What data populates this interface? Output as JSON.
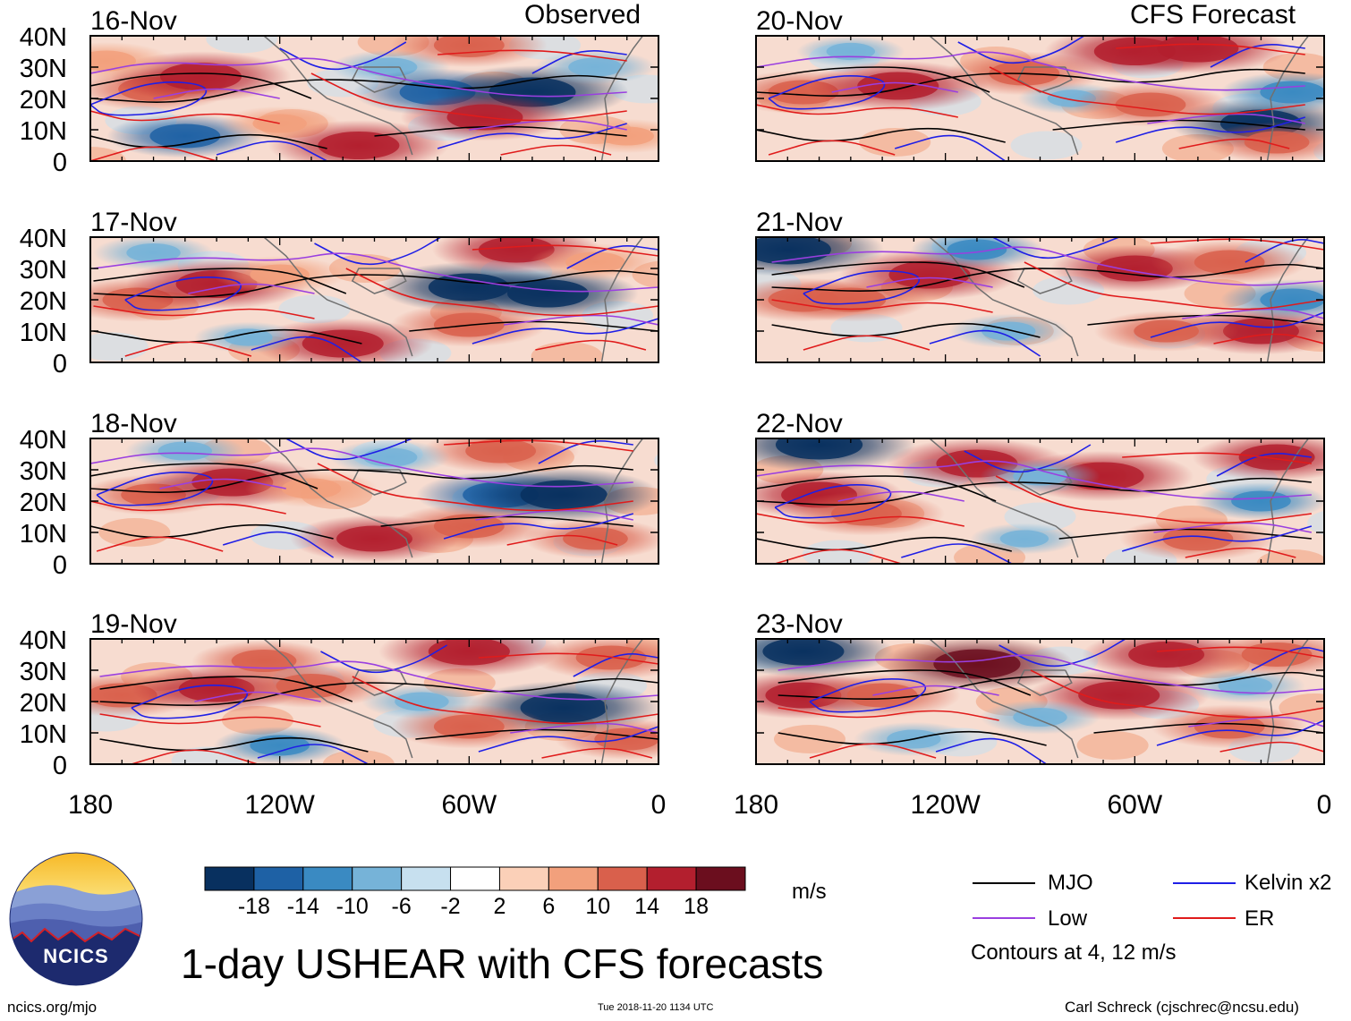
{
  "figure": {
    "title": "1-day USHEAR with CFS forecasts",
    "left_column_label": "Observed",
    "right_column_label": "CFS Forecast",
    "website": "ncics.org/mjo",
    "timestamp": "Tue 2018-11-20 1134 UTC",
    "author": "Carl Schreck (cjschrec@ncsu.edu)",
    "units": "m/s",
    "logo_text": "NCICS",
    "contour_note": "Contours at 4, 12 m/s"
  },
  "colors": {
    "neg_strong": "#0b3766",
    "pos_strong": "#6b0e1e",
    "mjo": "#000000",
    "kelvin": "#1f1fe6",
    "low": "#9a3fe0",
    "er": "#e01b1b",
    "coast": "#707070"
  },
  "chart_data": {
    "type": "heatmap",
    "variable": "USHEAR",
    "lat_ticks": [
      "40N",
      "30N",
      "20N",
      "10N",
      "0"
    ],
    "lat_values": [
      40,
      30,
      20,
      10,
      0
    ],
    "lon_ticks": [
      "180",
      "120W",
      "60W",
      "0"
    ],
    "lon_values": [
      -180,
      -120,
      -60,
      0
    ],
    "xlim": [
      -180,
      0
    ],
    "ylim": [
      0,
      40
    ],
    "colorbar": {
      "ticks": [
        "-18",
        "-14",
        "-10",
        "-6",
        "-2",
        "2",
        "6",
        "10",
        "14",
        "18"
      ],
      "colors": [
        "#08305f",
        "#1e61a5",
        "#3a8ac2",
        "#76b3d8",
        "#c7e0ef",
        "#ffffff",
        "#fbd0b8",
        "#f2a07c",
        "#d9604c",
        "#b31f2e",
        "#6b0e1e"
      ]
    },
    "legend": [
      {
        "label": "MJO",
        "color": "#000000"
      },
      {
        "label": "Kelvin x2",
        "color": "#1f1fe6"
      },
      {
        "label": "Low",
        "color": "#9a3fe0"
      },
      {
        "label": "ER",
        "color": "#e01b1b"
      }
    ],
    "panels": [
      {
        "date": "16-Nov",
        "group": "observed",
        "blobs": [
          [
            -160,
            23,
            14,
            "pos"
          ],
          [
            -145,
            27,
            18,
            "pos"
          ],
          [
            -175,
            32,
            10,
            "pos"
          ],
          [
            -150,
            8,
            -14,
            "neg"
          ],
          [
            -95,
            5,
            18,
            "pos"
          ],
          [
            -85,
            30,
            -8,
            "neg"
          ],
          [
            -70,
            22,
            -16,
            "neg"
          ],
          [
            -40,
            22,
            -20,
            "neg"
          ],
          [
            -55,
            14,
            16,
            "pos"
          ],
          [
            -20,
            30,
            -8,
            "neg"
          ],
          [
            -60,
            37,
            14,
            "pos"
          ],
          [
            -120,
            12,
            8,
            "pos"
          ],
          [
            -10,
            8,
            8,
            "pos"
          ]
        ]
      },
      {
        "date": "17-Nov",
        "group": "observed",
        "blobs": [
          [
            -165,
            20,
            14,
            "pos"
          ],
          [
            -140,
            25,
            18,
            "pos"
          ],
          [
            -120,
            28,
            10,
            "pos"
          ],
          [
            -160,
            35,
            -8,
            "neg"
          ],
          [
            -100,
            6,
            18,
            "pos"
          ],
          [
            -60,
            24,
            -18,
            "neg"
          ],
          [
            -35,
            22,
            -18,
            "neg"
          ],
          [
            -60,
            12,
            14,
            "pos"
          ],
          [
            -45,
            36,
            16,
            "pos"
          ],
          [
            -20,
            32,
            10,
            "pos"
          ],
          [
            -130,
            8,
            -6,
            "neg"
          ]
        ]
      },
      {
        "date": "18-Nov",
        "group": "observed",
        "blobs": [
          [
            -160,
            22,
            12,
            "pos"
          ],
          [
            -135,
            26,
            18,
            "pos"
          ],
          [
            -110,
            24,
            10,
            "pos"
          ],
          [
            -150,
            36,
            -8,
            "neg"
          ],
          [
            -90,
            8,
            16,
            "pos"
          ],
          [
            -50,
            22,
            -16,
            "neg"
          ],
          [
            -30,
            22,
            -20,
            "neg"
          ],
          [
            -60,
            12,
            14,
            "pos"
          ],
          [
            -50,
            36,
            14,
            "pos"
          ],
          [
            -20,
            8,
            12,
            "pos"
          ],
          [
            -85,
            34,
            -8,
            "neg"
          ]
        ]
      },
      {
        "date": "19-Nov",
        "group": "observed",
        "blobs": [
          [
            -170,
            22,
            14,
            "pos"
          ],
          [
            -140,
            24,
            16,
            "pos"
          ],
          [
            -110,
            25,
            14,
            "pos"
          ],
          [
            -125,
            33,
            12,
            "pos"
          ],
          [
            -60,
            36,
            18,
            "pos"
          ],
          [
            -30,
            18,
            -20,
            "neg"
          ],
          [
            -60,
            12,
            14,
            "pos"
          ],
          [
            -120,
            6,
            -10,
            "neg"
          ],
          [
            -75,
            20,
            -8,
            "neg"
          ],
          [
            -10,
            8,
            12,
            "pos"
          ],
          [
            -15,
            34,
            14,
            "pos"
          ]
        ]
      },
      {
        "date": "20-Nov",
        "group": "forecast",
        "blobs": [
          [
            -165,
            22,
            14,
            "pos"
          ],
          [
            -135,
            24,
            18,
            "pos"
          ],
          [
            -95,
            28,
            14,
            "pos"
          ],
          [
            -60,
            35,
            18,
            "pos"
          ],
          [
            -40,
            36,
            18,
            "pos"
          ],
          [
            -20,
            12,
            -18,
            "neg"
          ],
          [
            -80,
            20,
            -6,
            "neg"
          ],
          [
            -150,
            35,
            -6,
            "neg"
          ],
          [
            -55,
            18,
            14,
            "pos"
          ],
          [
            -10,
            22,
            -12,
            "neg"
          ],
          [
            -15,
            6,
            12,
            "pos"
          ]
        ]
      },
      {
        "date": "21-Nov",
        "group": "forecast",
        "blobs": [
          [
            -165,
            20,
            14,
            "pos"
          ],
          [
            -125,
            28,
            18,
            "pos"
          ],
          [
            -150,
            20,
            14,
            "pos"
          ],
          [
            -170,
            36,
            -20,
            "neg"
          ],
          [
            -60,
            30,
            16,
            "pos"
          ],
          [
            -30,
            32,
            14,
            "pos"
          ],
          [
            -20,
            10,
            16,
            "pos"
          ],
          [
            -50,
            10,
            12,
            "pos"
          ],
          [
            -100,
            10,
            -8,
            "neg"
          ],
          [
            -10,
            20,
            -12,
            "neg"
          ],
          [
            -110,
            36,
            -10,
            "neg"
          ]
        ]
      },
      {
        "date": "22-Nov",
        "group": "forecast",
        "blobs": [
          [
            -160,
            22,
            16,
            "pos"
          ],
          [
            -145,
            16,
            14,
            "pos"
          ],
          [
            -110,
            32,
            18,
            "pos"
          ],
          [
            -160,
            38,
            -20,
            "neg"
          ],
          [
            -70,
            28,
            18,
            "pos"
          ],
          [
            -40,
            8,
            14,
            "pos"
          ],
          [
            -15,
            34,
            16,
            "pos"
          ],
          [
            -95,
            8,
            -6,
            "neg"
          ],
          [
            -90,
            28,
            -8,
            "neg"
          ],
          [
            -20,
            20,
            -10,
            "neg"
          ]
        ]
      },
      {
        "date": "23-Nov",
        "group": "forecast",
        "blobs": [
          [
            -165,
            22,
            16,
            "pos"
          ],
          [
            -140,
            22,
            14,
            "pos"
          ],
          [
            -110,
            32,
            20,
            "pos"
          ],
          [
            -165,
            36,
            -18,
            "neg"
          ],
          [
            -65,
            22,
            18,
            "pos"
          ],
          [
            -50,
            35,
            16,
            "pos"
          ],
          [
            -30,
            12,
            14,
            "pos"
          ],
          [
            -90,
            15,
            -8,
            "neg"
          ],
          [
            -130,
            8,
            -8,
            "neg"
          ],
          [
            -25,
            25,
            -8,
            "neg"
          ],
          [
            -15,
            35,
            14,
            "pos"
          ]
        ]
      }
    ],
    "contours": {
      "mjo": [
        [
          [
            -180,
            10
          ],
          [
            -150,
            5
          ],
          [
            -120,
            12
          ],
          [
            -95,
            6
          ]
        ],
        [
          [
            -180,
            22
          ],
          [
            -140,
            20
          ],
          [
            -110,
            28
          ],
          [
            -80,
            28
          ],
          [
            -50,
            24
          ],
          [
            -20,
            30
          ],
          [
            0,
            28
          ]
        ],
        [
          [
            -180,
            26
          ],
          [
            -150,
            30
          ],
          [
            -120,
            30
          ],
          [
            -100,
            22
          ]
        ],
        [
          [
            -80,
            10
          ],
          [
            -40,
            14
          ],
          [
            0,
            10
          ]
        ]
      ],
      "kelvin": [
        [
          [
            -170,
            20
          ],
          [
            -150,
            28
          ],
          [
            -130,
            26
          ],
          [
            -140,
            18
          ],
          [
            -165,
            16
          ],
          [
            -170,
            20
          ]
        ],
        [
          [
            -110,
            38
          ],
          [
            -95,
            30
          ],
          [
            -80,
            34
          ],
          [
            -70,
            40
          ]
        ],
        [
          [
            -60,
            6
          ],
          [
            -40,
            12
          ],
          [
            -20,
            8
          ],
          [
            0,
            14
          ]
        ],
        [
          [
            -130,
            4
          ],
          [
            -110,
            10
          ],
          [
            -95,
            0
          ]
        ],
        [
          [
            -30,
            30
          ],
          [
            -15,
            38
          ],
          [
            0,
            36
          ]
        ]
      ],
      "low": [
        [
          [
            -180,
            30
          ],
          [
            -150,
            34
          ],
          [
            -120,
            32
          ],
          [
            -100,
            36
          ],
          [
            -80,
            30
          ],
          [
            -60,
            26
          ],
          [
            -30,
            22
          ],
          [
            0,
            24
          ]
        ],
        [
          [
            -150,
            22
          ],
          [
            -130,
            26
          ],
          [
            -110,
            22
          ]
        ],
        [
          [
            -50,
            12
          ],
          [
            -20,
            16
          ],
          [
            0,
            12
          ]
        ]
      ],
      "er": [
        [
          [
            -180,
            18
          ],
          [
            -155,
            14
          ],
          [
            -130,
            18
          ],
          [
            -110,
            14
          ]
        ],
        [
          [
            -100,
            30
          ],
          [
            -80,
            20
          ],
          [
            -60,
            18
          ],
          [
            -30,
            14
          ],
          [
            0,
            18
          ]
        ],
        [
          [
            -170,
            2
          ],
          [
            -150,
            8
          ],
          [
            -130,
            2
          ]
        ],
        [
          [
            -60,
            36
          ],
          [
            -30,
            38
          ],
          [
            0,
            34
          ]
        ],
        [
          [
            -40,
            4
          ],
          [
            -20,
            8
          ],
          [
            -5,
            4
          ]
        ]
      ]
    }
  }
}
